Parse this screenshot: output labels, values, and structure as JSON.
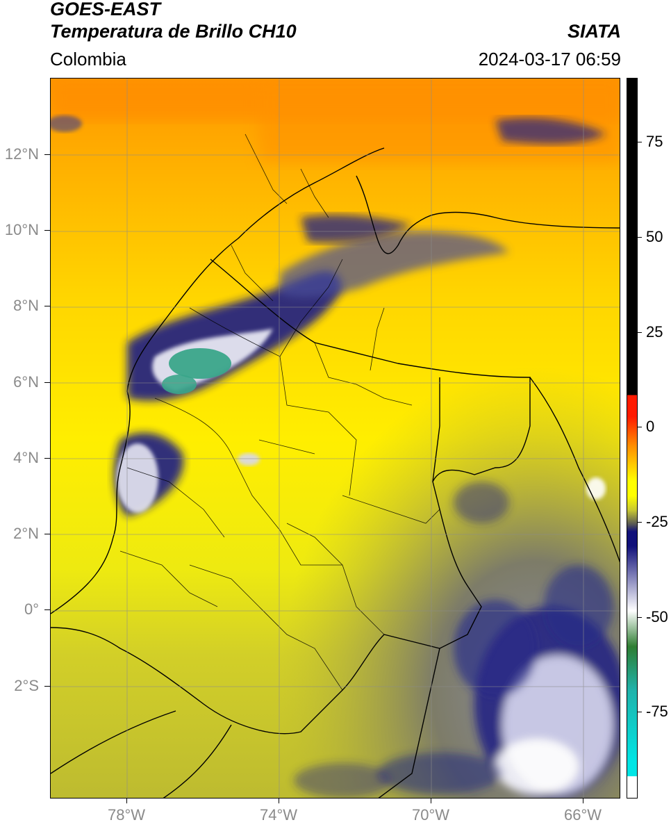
{
  "header": {
    "title_line1": "GOES-EAST",
    "title_line2": "Temperatura de Brillo CH10",
    "organization": "SIATA",
    "region": "Colombia",
    "timestamp": "2024-03-17 06:59"
  },
  "axes": {
    "lat_labels": [
      "12°N",
      "10°N",
      "8°N",
      "6°N",
      "4°N",
      "2°N",
      "0°",
      "2°S"
    ],
    "lon_labels": [
      "78°W",
      "74°W",
      "70°W",
      "66°W"
    ]
  },
  "colorbar": {
    "tick_labels": [
      "75",
      "50",
      "25",
      "0",
      "-25",
      "-50",
      "-75"
    ],
    "colors": {
      "hot": "#000000",
      "red": "#ff1a00",
      "orange": "#ff8c00",
      "yellow": "#ffff00",
      "olive": "#c8c832",
      "gray": "#555555",
      "navy": "#10107a",
      "white": "#ffffff",
      "green": "#2e7d32",
      "teal": "#20b2aa",
      "cyan": "#00e5e5"
    }
  },
  "map_colors": {
    "sea_warm": "#ff9a00",
    "land_yellow": "#ffee00",
    "south_olive": "#c4c232",
    "cloud_navy": "#1b1f86",
    "cloud_white": "#f2f2f8",
    "cloud_teal": "#3aa58a",
    "border": "#000000",
    "grid": "#8c8c8c"
  }
}
